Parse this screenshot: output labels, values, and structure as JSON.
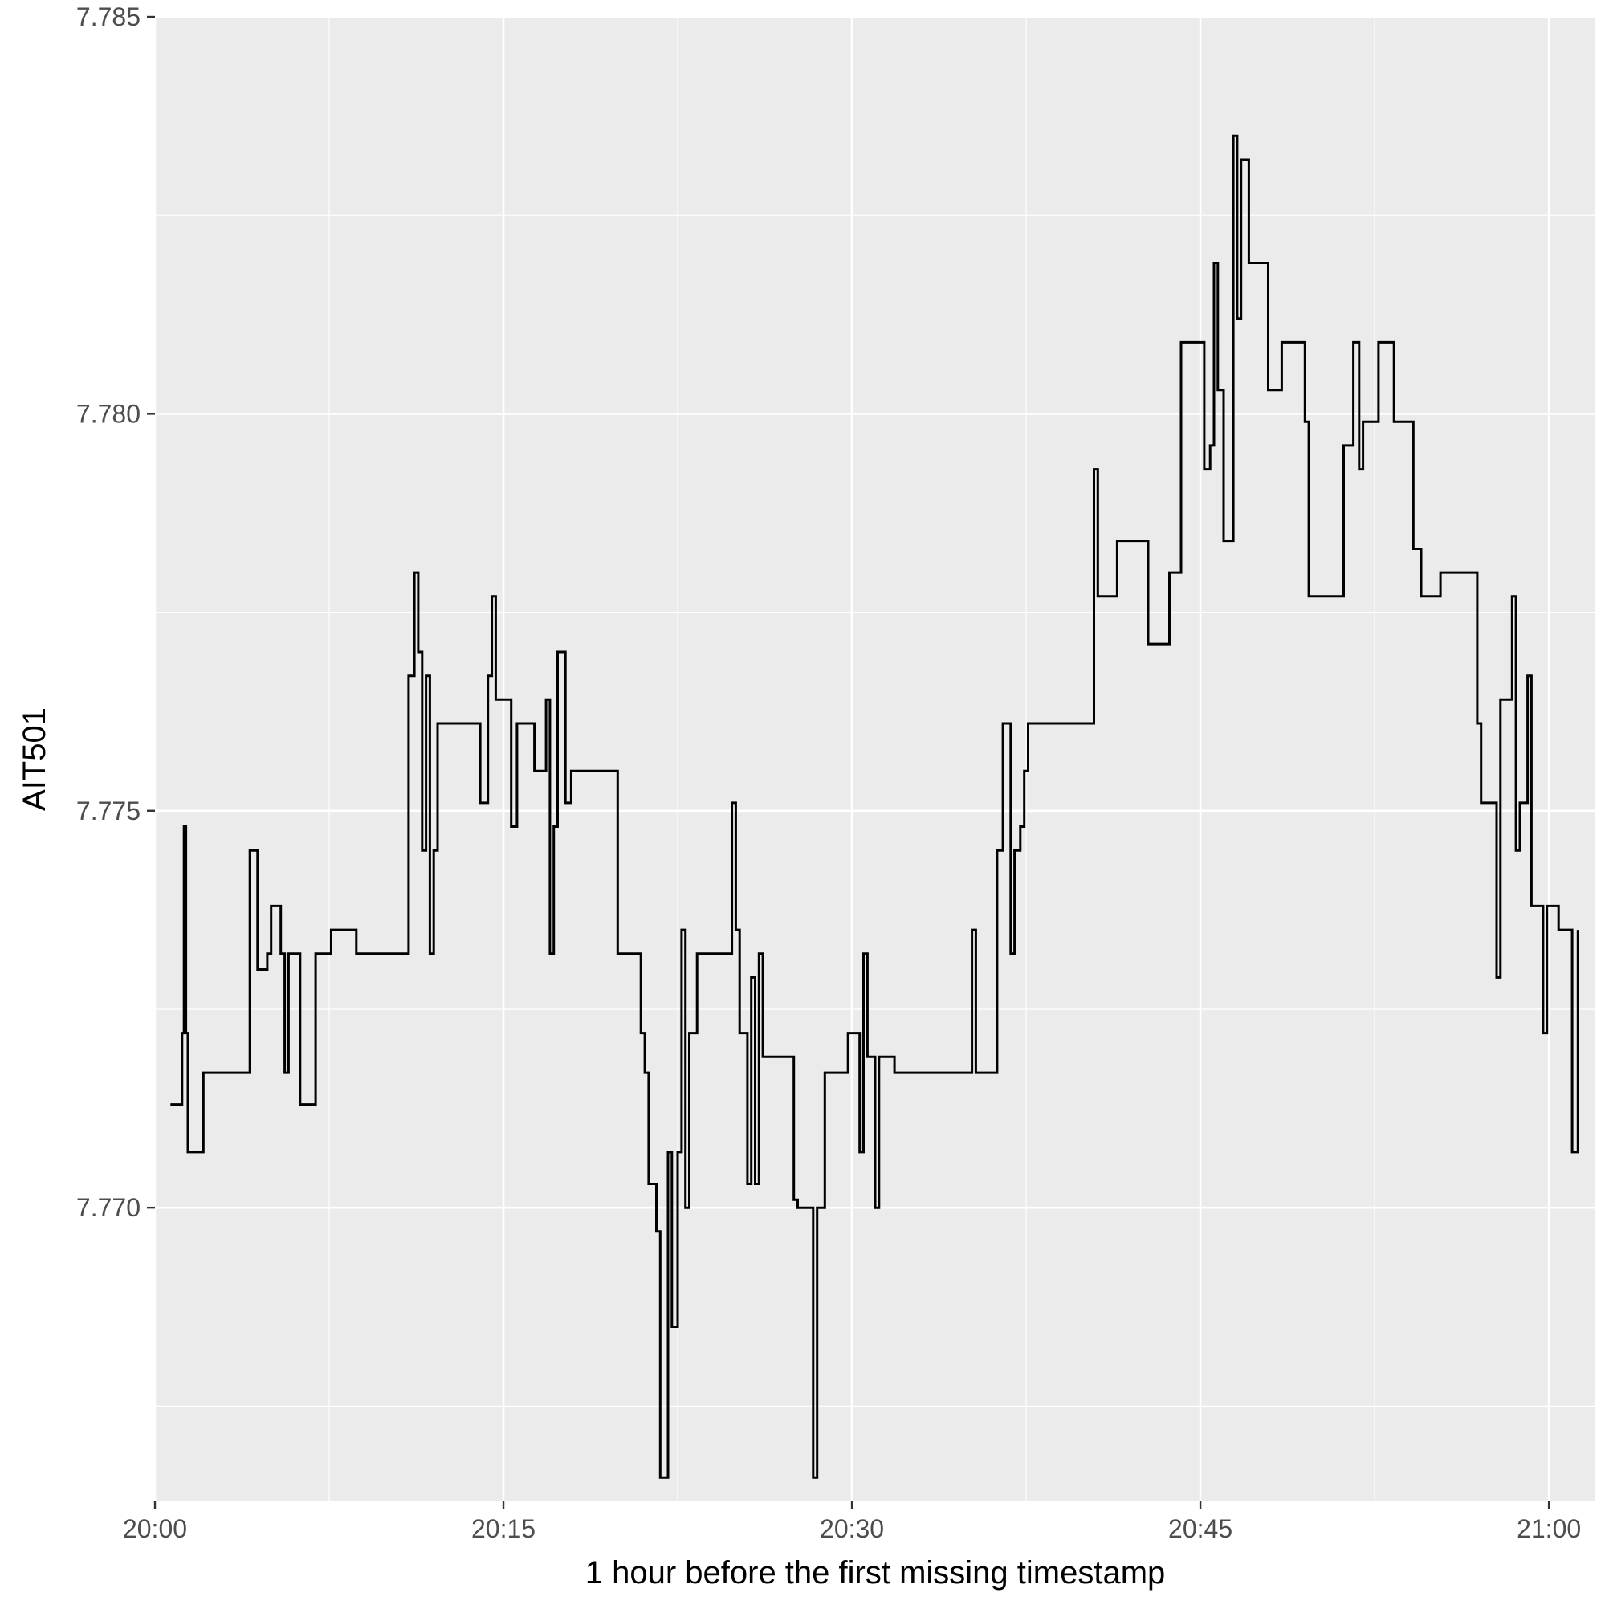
{
  "chart_data": {
    "type": "line",
    "line_style": "step",
    "title": "",
    "xlabel": "1 hour before the first missing timestamp",
    "ylabel": "AIT501",
    "x_unit": "time (hh:mm)",
    "xlim": [
      "20:00",
      "21:02"
    ],
    "ylim": [
      7.7663,
      7.785
    ],
    "x_ticks": [
      "20:00",
      "20:15",
      "20:30",
      "20:45",
      "21:00"
    ],
    "y_ticks": [
      "7.770",
      "7.775",
      "7.780",
      "7.785"
    ],
    "grid": true,
    "legend": "none",
    "colors": {
      "panel_background": "#ebebeb",
      "grid": "#ffffff",
      "line": "#000000",
      "tick_label": "#4d4d4d",
      "tick_mark": "#333333"
    },
    "series": [
      {
        "points": [
          [
            "20:00:40",
            7.7713
          ],
          [
            "20:01:10",
            7.7722
          ],
          [
            "20:01:15",
            7.7748
          ],
          [
            "20:01:20",
            7.7722
          ],
          [
            "20:01:25",
            7.7707
          ],
          [
            "20:02:05",
            7.7717
          ],
          [
            "20:04:05",
            7.7745
          ],
          [
            "20:04:25",
            7.773
          ],
          [
            "20:04:50",
            7.7732
          ],
          [
            "20:05:00",
            7.7738
          ],
          [
            "20:05:25",
            7.7732
          ],
          [
            "20:05:35",
            7.7717
          ],
          [
            "20:05:45",
            7.7732
          ],
          [
            "20:06:15",
            7.7713
          ],
          [
            "20:06:55",
            7.7732
          ],
          [
            "20:07:35",
            7.7735
          ],
          [
            "20:08:40",
            7.7732
          ],
          [
            "20:10:55",
            7.7767
          ],
          [
            "20:11:10",
            7.778
          ],
          [
            "20:11:20",
            7.777
          ],
          [
            "20:11:30",
            7.7745
          ],
          [
            "20:11:40",
            7.7767
          ],
          [
            "20:11:50",
            7.7732
          ],
          [
            "20:12:00",
            7.7745
          ],
          [
            "20:12:10",
            7.7761
          ],
          [
            "20:14:00",
            7.7751
          ],
          [
            "20:14:20",
            7.7767
          ],
          [
            "20:14:30",
            7.7777
          ],
          [
            "20:14:40",
            7.7764
          ],
          [
            "20:15:20",
            7.7748
          ],
          [
            "20:15:35",
            7.7761
          ],
          [
            "20:16:20",
            7.7755
          ],
          [
            "20:16:50",
            7.7764
          ],
          [
            "20:17:00",
            7.7732
          ],
          [
            "20:17:10",
            7.7748
          ],
          [
            "20:17:20",
            7.777
          ],
          [
            "20:17:40",
            7.7751
          ],
          [
            "20:17:55",
            7.7755
          ],
          [
            "20:19:55",
            7.7732
          ],
          [
            "20:20:55",
            7.7722
          ],
          [
            "20:21:05",
            7.7717
          ],
          [
            "20:21:15",
            7.7703
          ],
          [
            "20:21:35",
            7.7697
          ],
          [
            "20:21:45",
            7.7666
          ],
          [
            "20:22:05",
            7.7707
          ],
          [
            "20:22:15",
            7.7685
          ],
          [
            "20:22:30",
            7.7707
          ],
          [
            "20:22:40",
            7.7735
          ],
          [
            "20:22:50",
            7.77
          ],
          [
            "20:23:00",
            7.7722
          ],
          [
            "20:23:20",
            7.7732
          ],
          [
            "20:24:50",
            7.7751
          ],
          [
            "20:25:00",
            7.7735
          ],
          [
            "20:25:10",
            7.7722
          ],
          [
            "20:25:30",
            7.7703
          ],
          [
            "20:25:40",
            7.7729
          ],
          [
            "20:25:50",
            7.7703
          ],
          [
            "20:26:00",
            7.7732
          ],
          [
            "20:26:10",
            7.7719
          ],
          [
            "20:27:30",
            7.7701
          ],
          [
            "20:27:40",
            7.77
          ],
          [
            "20:28:20",
            7.7666
          ],
          [
            "20:28:30",
            7.77
          ],
          [
            "20:28:50",
            7.7717
          ],
          [
            "20:29:50",
            7.7722
          ],
          [
            "20:30:20",
            7.7707
          ],
          [
            "20:30:30",
            7.7732
          ],
          [
            "20:30:40",
            7.7719
          ],
          [
            "20:31:00",
            7.77
          ],
          [
            "20:31:10",
            7.7719
          ],
          [
            "20:31:50",
            7.7717
          ],
          [
            "20:35:10",
            7.7735
          ],
          [
            "20:35:20",
            7.7717
          ],
          [
            "20:36:15",
            7.7745
          ],
          [
            "20:36:30",
            7.7761
          ],
          [
            "20:36:50",
            7.7732
          ],
          [
            "20:37:00",
            7.7745
          ],
          [
            "20:37:15",
            7.7748
          ],
          [
            "20:37:25",
            7.7755
          ],
          [
            "20:37:35",
            7.7761
          ],
          [
            "20:40:25",
            7.7793
          ],
          [
            "20:40:35",
            7.7777
          ],
          [
            "20:41:25",
            7.7784
          ],
          [
            "20:42:45",
            7.7771
          ],
          [
            "20:43:40",
            7.778
          ],
          [
            "20:44:10",
            7.7809
          ],
          [
            "20:45:10",
            7.7793
          ],
          [
            "20:45:25",
            7.7796
          ],
          [
            "20:45:35",
            7.7819
          ],
          [
            "20:45:45",
            7.7803
          ],
          [
            "20:46:00",
            7.7784
          ],
          [
            "20:46:25",
            7.7835
          ],
          [
            "20:46:35",
            7.7812
          ],
          [
            "20:46:45",
            7.7832
          ],
          [
            "20:47:05",
            7.7819
          ],
          [
            "20:47:55",
            7.7803
          ],
          [
            "20:48:30",
            7.7809
          ],
          [
            "20:49:30",
            7.7799
          ],
          [
            "20:49:40",
            7.7777
          ],
          [
            "20:51:10",
            7.7796
          ],
          [
            "20:51:35",
            7.7809
          ],
          [
            "20:51:50",
            7.7793
          ],
          [
            "20:52:00",
            7.7799
          ],
          [
            "20:52:40",
            7.7809
          ],
          [
            "20:53:20",
            7.7799
          ],
          [
            "20:54:10",
            7.7783
          ],
          [
            "20:54:30",
            7.7777
          ],
          [
            "20:55:20",
            7.778
          ],
          [
            "20:56:55",
            7.7761
          ],
          [
            "20:57:05",
            7.7751
          ],
          [
            "20:57:45",
            7.7729
          ],
          [
            "20:57:55",
            7.7764
          ],
          [
            "20:58:25",
            7.7777
          ],
          [
            "20:58:35",
            7.7745
          ],
          [
            "20:58:45",
            7.7751
          ],
          [
            "20:59:05",
            7.7767
          ],
          [
            "20:59:15",
            7.7738
          ],
          [
            "20:59:45",
            7.7722
          ],
          [
            "20:59:55",
            7.7738
          ],
          [
            "21:00:25",
            7.7735
          ],
          [
            "21:01:00",
            7.7707
          ],
          [
            "21:01:15",
            7.7735
          ]
        ]
      }
    ]
  }
}
